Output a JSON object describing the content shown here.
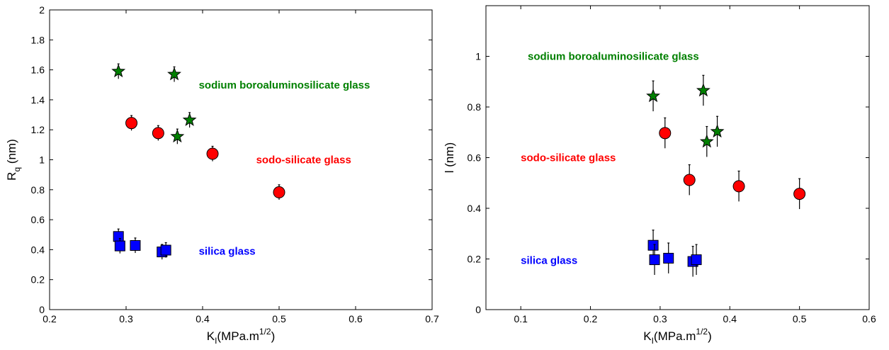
{
  "chart_data": [
    {
      "type": "scatter",
      "ylabel": {
        "main": "R",
        "sub": "q",
        "tail": " (nm)"
      },
      "xlabel": {
        "main": "K",
        "sub": "I",
        "mid": "(MPa.m",
        "sup": "1/2",
        "tail": ")"
      },
      "xlim": [
        0.2,
        0.7
      ],
      "ylim": [
        0,
        2
      ],
      "xticks": [
        "0.2",
        "0.3",
        "0.4",
        "0.5",
        "0.6",
        "0.7"
      ],
      "yticks": [
        "0",
        "0.2",
        "0.4",
        "0.6",
        "0.8",
        "1",
        "1.2",
        "1.4",
        "1.6",
        "1.8",
        "2"
      ],
      "series": [
        {
          "color": "#008000",
          "marker": "star",
          "points": [
            [
              0.29,
              1.59,
              0.05
            ],
            [
              0.363,
              1.57,
              0.05
            ],
            [
              0.367,
              1.155,
              0.05
            ],
            [
              0.383,
              1.265,
              0.05
            ]
          ]
        },
        {
          "color": "#ff0000",
          "marker": "circle",
          "points": [
            [
              0.307,
              1.245,
              0.05
            ],
            [
              0.342,
              1.178,
              0.05
            ],
            [
              0.413,
              1.04,
              0.05
            ],
            [
              0.5,
              0.783,
              0.05
            ]
          ]
        },
        {
          "color": "#0000ff",
          "marker": "square",
          "points": [
            [
              0.29,
              0.488,
              0.05
            ],
            [
              0.292,
              0.425,
              0.05
            ],
            [
              0.312,
              0.428,
              0.05
            ],
            [
              0.347,
              0.385,
              0.05
            ],
            [
              0.352,
              0.397,
              0.05
            ]
          ]
        }
      ],
      "annotations": [
        {
          "text": "sodium boroaluminosilicate glass",
          "x": 0.395,
          "y": 1.5,
          "color": "#008000"
        },
        {
          "text": "sodo-silicate glass",
          "x": 0.47,
          "y": 1.0,
          "color": "#ff0000"
        },
        {
          "text": "silica glass",
          "x": 0.395,
          "y": 0.39,
          "color": "#0000ff"
        }
      ]
    },
    {
      "type": "scatter",
      "ylabel": {
        "main": "l (nm)"
      },
      "xlabel": {
        "main": "K",
        "sub": "I",
        "mid": "(MPa.m",
        "sup": "1/2",
        "tail": ")"
      },
      "xlim": [
        0.05,
        0.6
      ],
      "ylim": [
        0,
        1.2
      ],
      "xticks": [
        "0.1",
        "0.2",
        "0.3",
        "0.4",
        "0.5",
        "0.6"
      ],
      "yticks": [
        "0",
        "0.2",
        "0.4",
        "0.6",
        "0.8",
        "1"
      ],
      "series": [
        {
          "color": "#008000",
          "marker": "star",
          "points": [
            [
              0.29,
              0.843,
              0.06
            ],
            [
              0.362,
              0.865,
              0.06
            ],
            [
              0.367,
              0.663,
              0.06
            ],
            [
              0.382,
              0.703,
              0.06
            ]
          ]
        },
        {
          "color": "#ff0000",
          "marker": "circle",
          "points": [
            [
              0.307,
              0.697,
              0.06
            ],
            [
              0.342,
              0.512,
              0.06
            ],
            [
              0.413,
              0.487,
              0.06
            ],
            [
              0.5,
              0.457,
              0.06
            ]
          ]
        },
        {
          "color": "#0000ff",
          "marker": "square",
          "points": [
            [
              0.29,
              0.254,
              0.06
            ],
            [
              0.292,
              0.197,
              0.06
            ],
            [
              0.312,
              0.203,
              0.06
            ],
            [
              0.347,
              0.19,
              0.06
            ],
            [
              0.352,
              0.197,
              0.06
            ]
          ]
        }
      ],
      "annotations": [
        {
          "text": "sodium boroaluminosilicate glass",
          "x": 0.11,
          "y": 1.0,
          "color": "#008000"
        },
        {
          "text": "sodo-silicate glass",
          "x": 0.1,
          "y": 0.6,
          "color": "#ff0000"
        },
        {
          "text": "silica glass",
          "x": 0.1,
          "y": 0.195,
          "color": "#0000ff"
        }
      ]
    }
  ]
}
